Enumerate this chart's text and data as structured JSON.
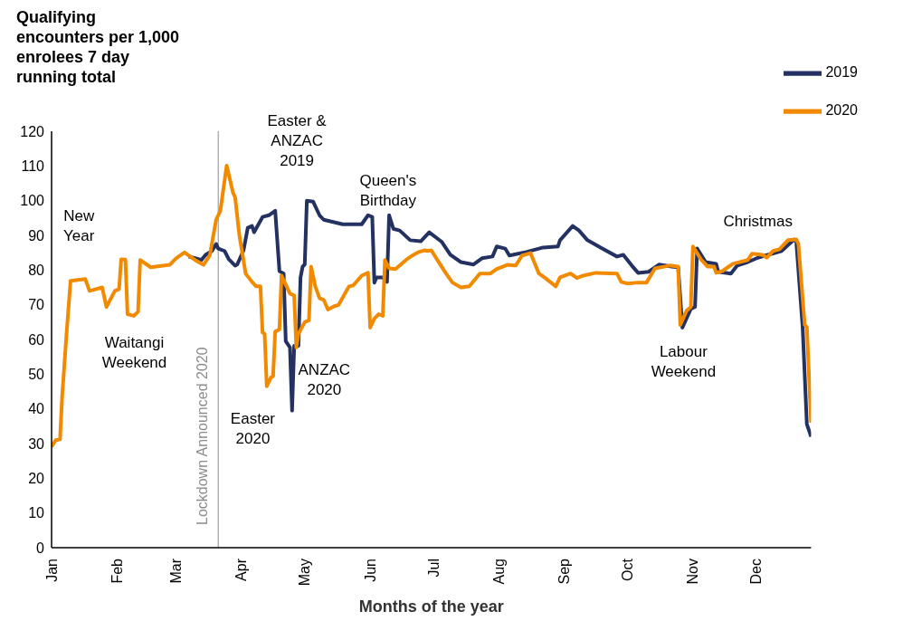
{
  "chart_data": {
    "type": "line",
    "ylabel": "Qualifying encounters per 1,000 enrolees 7 day running total",
    "xlabel": "Months of the year",
    "xlim": [
      "--01-01",
      "--12-27"
    ],
    "xticks": [
      {
        "value": "--01-01",
        "label": "Jan"
      },
      {
        "value": "--02-01",
        "label": "Feb"
      },
      {
        "value": "--03-01",
        "label": "Mar"
      },
      {
        "value": "--04-01",
        "label": "Apr"
      },
      {
        "value": "--05-01",
        "label": "May"
      },
      {
        "value": "--06-01",
        "label": "Jun"
      },
      {
        "value": "--07-01",
        "label": "Jul"
      },
      {
        "value": "--08-01",
        "label": "Aug"
      },
      {
        "value": "--09-01",
        "label": "Sep"
      },
      {
        "value": "--10-01",
        "label": "Oct"
      },
      {
        "value": "--11-01",
        "label": "Nov"
      },
      {
        "value": "--12-01",
        "label": "Dec"
      }
    ],
    "ylim": [
      0,
      120
    ],
    "yticks": [
      0,
      10,
      20,
      30,
      40,
      50,
      60,
      70,
      80,
      90,
      100,
      110,
      120
    ],
    "legend": "top right",
    "grid": false,
    "series": [
      {
        "name": "2019",
        "color": "#233262",
        "x": [
          "--03-07",
          "--03-10",
          "--03-13",
          "--03-15",
          "--03-18",
          "--03-20",
          "--03-21",
          "--03-24",
          "--03-26",
          "--03-29",
          "--03-30",
          "--04-02",
          "--04-04",
          "--04-06",
          "--04-07",
          "--04-11",
          "--04-14",
          "--04-17",
          "--04-19",
          "--04-21",
          "--04-22",
          "--04-24",
          "--04-25",
          "--04-26",
          "--04-28",
          "--04-29",
          "--04-30",
          "--05-01",
          "--05-02",
          "--05-05",
          "--05-08",
          "--05-10",
          "--05-19",
          "--05-28",
          "--05-31",
          "--06-02",
          "--06-03",
          "--06-04",
          "--06-07",
          "--06-09",
          "--06-10",
          "--06-12",
          "--06-15",
          "--06-20",
          "--06-25",
          "--06-29",
          "--07-05",
          "--07-09",
          "--07-14",
          "--07-20",
          "--07-24",
          "--07-29",
          "--07-31",
          "--08-04",
          "--08-06",
          "--08-14",
          "--08-22",
          "--08-29",
          "--08-30",
          "--09-05",
          "--09-08",
          "--09-12",
          "--09-19",
          "--09-26",
          "--09-29",
          "--10-03",
          "--10-06",
          "--10-11",
          "--10-16",
          "--10-22",
          "--10-25",
          "--10-27",
          "--10-31",
          "--11-02",
          "--11-03",
          "--11-07",
          "--11-12",
          "--11-13",
          "--11-19",
          "--11-22",
          "--11-27",
          "--12-02",
          "--12-13",
          "--12-19",
          "--12-20",
          "--12-23",
          "--12-25",
          "--12-26",
          "--12-27"
        ],
        "values": [
          83.9,
          83.4,
          82.9,
          84.4,
          85.5,
          87.5,
          86.2,
          85.5,
          83.1,
          81.3,
          81.6,
          85.7,
          92.2,
          92.7,
          90.9,
          95.3,
          95.8,
          97.1,
          79.7,
          79,
          59.5,
          57.7,
          39.5,
          58.2,
          58.2,
          77.9,
          81,
          81.6,
          100,
          99.7,
          95.8,
          94.5,
          93.2,
          93.2,
          95.8,
          95.3,
          76.4,
          77.9,
          77.9,
          76.6,
          95.8,
          91.9,
          91.4,
          88.6,
          88.3,
          90.9,
          88.1,
          84.4,
          82.3,
          81.6,
          83.4,
          83.9,
          86.8,
          86.2,
          84.2,
          85.2,
          86.5,
          86.8,
          88.6,
          92.7,
          91.4,
          88.6,
          86.2,
          83.9,
          84.4,
          81.3,
          79.2,
          79.5,
          81.6,
          81,
          80.8,
          63.4,
          68.8,
          69.4,
          86.2,
          82.3,
          81.8,
          79.5,
          79,
          81.3,
          82.3,
          83.6,
          85.5,
          88.8,
          88.1,
          63.6,
          35.6,
          33.8,
          32
        ]
      },
      {
        "name": "2020",
        "color": "#f28a00",
        "x": [
          "--01-01",
          "--01-03",
          "--01-05",
          "--01-06",
          "--01-08",
          "--01-10",
          "--01-17",
          "--01-19",
          "--01-25",
          "--01-27",
          "--01-31",
          "--02-02",
          "--02-03",
          "--02-05",
          "--02-06",
          "--02-09",
          "--02-11",
          "--02-12",
          "--02-17",
          "--02-26",
          "--03-01",
          "--03-05",
          "--03-10",
          "--03-14",
          "--03-17",
          "--03-20",
          "--03-22",
          "--03-25",
          "--03-28",
          "--03-29",
          "--03-31",
          "--04-03",
          "--04-06",
          "--04-08",
          "--04-10",
          "--04-11",
          "--04-12",
          "--04-13",
          "--04-15",
          "--04-16",
          "--04-17",
          "--04-19",
          "--04-20",
          "--04-24",
          "--04-26",
          "--04-27",
          "--04-28",
          "--05-01",
          "--05-03",
          "--05-04",
          "--05-06",
          "--05-08",
          "--05-10",
          "--05-12",
          "--05-15",
          "--05-17",
          "--05-22",
          "--05-24",
          "--05-28",
          "--05-31",
          "--06-01",
          "--06-03",
          "--06-05",
          "--06-07",
          "--06-08",
          "--06-10",
          "--06-13",
          "--06-18",
          "--06-21",
          "--06-24",
          "--06-27",
          "--06-28",
          "--06-30",
          "--07-04",
          "--07-07",
          "--07-10",
          "--07-14",
          "--07-18",
          "--07-23",
          "--07-28",
          "--07-31",
          "--08-05",
          "--08-09",
          "--08-12",
          "--08-16",
          "--08-20",
          "--08-23",
          "--08-28",
          "--08-30",
          "--09-04",
          "--09-07",
          "--09-10",
          "--09-16",
          "--09-26",
          "--09-28",
          "--10-01",
          "--10-06",
          "--10-10",
          "--10-14",
          "--10-21",
          "--10-25",
          "--10-26",
          "--10-29",
          "--10-31",
          "--11-01",
          "--11-05",
          "--11-08",
          "--11-11",
          "--11-12",
          "--11-15",
          "--11-18",
          "--11-20",
          "--11-27",
          "--11-29",
          "--12-04",
          "--12-06",
          "--12-09",
          "--12-12",
          "--12-16",
          "--12-20",
          "--12-21",
          "--12-24",
          "--12-25",
          "--12-27"
        ],
        "values": [
          29.1,
          31,
          31.2,
          43.4,
          60.8,
          76.9,
          77.4,
          74,
          75,
          69.4,
          74,
          74.5,
          83.1,
          83,
          67.3,
          66.8,
          68,
          82.9,
          80.8,
          81.5,
          83.4,
          85.1,
          82.9,
          81.5,
          84.2,
          94.5,
          97.1,
          110.1,
          102.3,
          101,
          90.1,
          79,
          76.6,
          75.3,
          75.3,
          62,
          61.6,
          46.5,
          49.1,
          49.4,
          62.3,
          62.9,
          78.4,
          73.2,
          72.7,
          57.7,
          61.6,
          65,
          65.5,
          81,
          75.3,
          71.9,
          71.4,
          68.6,
          69.6,
          69.9,
          75.3,
          75.6,
          78.4,
          79.2,
          63.4,
          66,
          67.3,
          66.8,
          82.9,
          80.5,
          80.3,
          82.9,
          84.2,
          85.2,
          85.7,
          85.5,
          85.7,
          81.8,
          79,
          76.4,
          75,
          75.3,
          79,
          79,
          80.3,
          81.5,
          81.3,
          84.2,
          84.9,
          79,
          77.7,
          75.3,
          77.9,
          79,
          77.7,
          78.4,
          79.2,
          79,
          76.6,
          76.1,
          76.4,
          76.4,
          80.5,
          81.3,
          81,
          64.2,
          68.3,
          69.4,
          86.8,
          82.9,
          81,
          81,
          79.2,
          79.7,
          81,
          81.8,
          82.9,
          84.7,
          84.4,
          83.6,
          85.5,
          86,
          88.6,
          88.8,
          87.5,
          64.2,
          63.6,
          36
        ]
      }
    ],
    "ref_lines": [
      {
        "axis": "x",
        "value": "--03-21",
        "label": "Lockdown Announced 2020",
        "color": "#8c8c8c"
      }
    ],
    "annotations": [
      "New Year",
      "Waitangi Weekend",
      "Easter & ANZAC 2019",
      "Queen's Birthday",
      "ANZAC 2020",
      "Easter 2020",
      "Labour Weekend",
      "Christmas"
    ]
  }
}
